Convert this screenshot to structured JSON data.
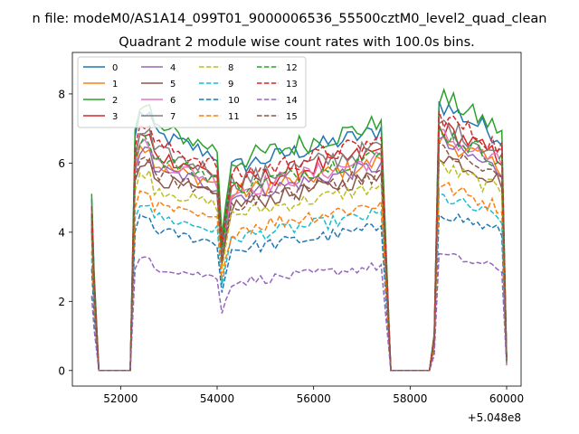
{
  "chart_data": {
    "type": "line",
    "suptitle": "n file: modeM0/AS1A14_099T01_9000006536_55500cztM0_level2_quad_clean",
    "title": "Quadrant 2 module wise count rates with 100.0s bins.",
    "xlabel": "",
    "ylabel": "",
    "x_offset_label": "+5.048e8",
    "xlim": [
      51000,
      60300
    ],
    "ylim": [
      -0.45,
      9.2
    ],
    "xticks": [
      52000,
      54000,
      56000,
      58000,
      60000
    ],
    "xtick_labels": [
      "52000",
      "54000",
      "56000",
      "58000",
      "60000"
    ],
    "yticks": [
      0,
      2,
      4,
      6,
      8
    ],
    "ytick_labels": [
      "0",
      "2",
      "4",
      "6",
      "8"
    ],
    "grid": false,
    "legend_position": "top-left",
    "legend_columns": 4,
    "time_segments": [
      {
        "start": 51400,
        "end": 52200,
        "shape": "entry"
      },
      {
        "start": 52300,
        "end": 54000,
        "shape": "gti"
      },
      {
        "start": 54100,
        "end": 57600,
        "shape": "gti_dip"
      },
      {
        "start": 57600,
        "end": 58400,
        "shape": "gap"
      },
      {
        "start": 58500,
        "end": 60000,
        "shape": "gti_exit"
      }
    ],
    "series": [
      {
        "name": "0",
        "color": "#1f77b4",
        "dashed": false,
        "level": 6.9
      },
      {
        "name": "1",
        "color": "#ff7f0e",
        "dashed": false,
        "level": 6.0
      },
      {
        "name": "2",
        "color": "#2ca02c",
        "dashed": false,
        "level": 7.1
      },
      {
        "name": "3",
        "color": "#d62728",
        "dashed": false,
        "level": 6.3
      },
      {
        "name": "4",
        "color": "#9467bd",
        "dashed": false,
        "level": 5.9
      },
      {
        "name": "5",
        "color": "#8c564b",
        "dashed": false,
        "level": 5.6
      },
      {
        "name": "6",
        "color": "#e377c2",
        "dashed": false,
        "level": 6.1
      },
      {
        "name": "7",
        "color": "#7f7f7f",
        "dashed": false,
        "level": 6.4
      },
      {
        "name": "8",
        "color": "#bcbd22",
        "dashed": true,
        "level": 5.3
      },
      {
        "name": "9",
        "color": "#17becf",
        "dashed": true,
        "level": 4.5
      },
      {
        "name": "10",
        "color": "#1f77b4",
        "dashed": true,
        "level": 4.1
      },
      {
        "name": "11",
        "color": "#ff7f0e",
        "dashed": true,
        "level": 4.8
      },
      {
        "name": "12",
        "color": "#2ca02c",
        "dashed": true,
        "level": 6.2
      },
      {
        "name": "13",
        "color": "#d62728",
        "dashed": true,
        "level": 6.6
      },
      {
        "name": "14",
        "color": "#9467bd",
        "dashed": true,
        "level": 3.0
      },
      {
        "name": "15",
        "color": "#8c564b",
        "dashed": true,
        "level": 5.7
      }
    ]
  }
}
